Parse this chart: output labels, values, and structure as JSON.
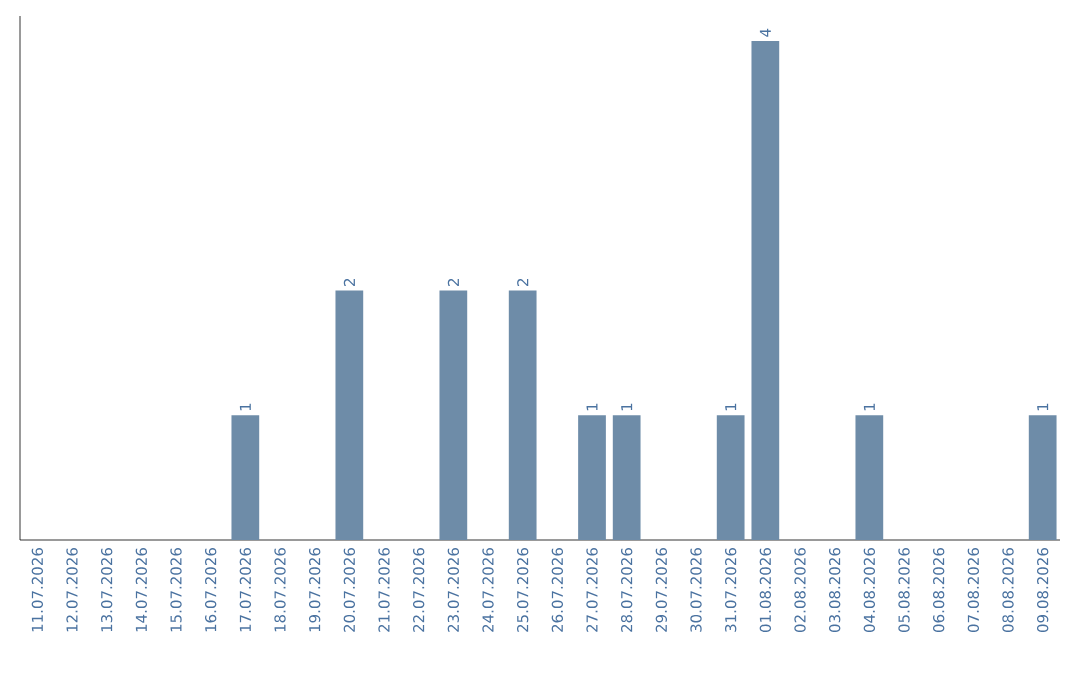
{
  "chart_data": {
    "type": "bar",
    "categories": [
      "11.07.2026",
      "12.07.2026",
      "13.07.2026",
      "14.07.2026",
      "15.07.2026",
      "16.07.2026",
      "17.07.2026",
      "18.07.2026",
      "19.07.2026",
      "20.07.2026",
      "21.07.2026",
      "22.07.2026",
      "23.07.2026",
      "24.07.2026",
      "25.07.2026",
      "26.07.2026",
      "27.07.2026",
      "28.07.2026",
      "29.07.2026",
      "30.07.2026",
      "31.07.2026",
      "01.08.2026",
      "02.08.2026",
      "03.08.2026",
      "04.08.2026",
      "05.08.2026",
      "06.08.2026",
      "07.08.2026",
      "08.08.2026",
      "09.08.2026"
    ],
    "values": [
      0,
      0,
      0,
      0,
      0,
      0,
      1,
      0,
      0,
      2,
      0,
      0,
      2,
      0,
      2,
      0,
      1,
      1,
      0,
      0,
      1,
      4,
      0,
      0,
      1,
      0,
      0,
      0,
      0,
      1
    ],
    "value_labels": [
      null,
      null,
      null,
      null,
      null,
      null,
      "1",
      null,
      null,
      "2",
      null,
      null,
      "2",
      null,
      "2",
      null,
      "1",
      "1",
      null,
      null,
      "1",
      "4",
      null,
      null,
      "1",
      null,
      null,
      null,
      null,
      "1"
    ],
    "color": "#6e8ca8",
    "tick_labels": "x"
  }
}
